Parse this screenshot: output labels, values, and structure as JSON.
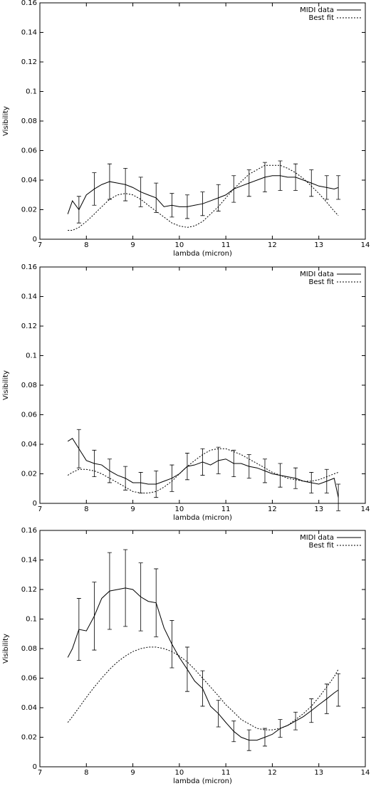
{
  "chart_data": [
    {
      "type": "line",
      "xlabel": "lambda (micron)",
      "ylabel": "Visibility",
      "legend": "top-right",
      "xlim": [
        7,
        14
      ],
      "xticks": [
        7,
        8,
        9,
        10,
        11,
        12,
        13,
        14
      ],
      "ylim": [
        0,
        0.16
      ],
      "yticks": [
        0,
        0.02,
        0.04,
        0.06,
        0.08,
        0.1,
        0.12,
        0.14,
        0.16
      ],
      "x": [
        7.6,
        7.7,
        7.84,
        8.0,
        8.17,
        8.33,
        8.5,
        8.67,
        8.84,
        9.0,
        9.17,
        9.33,
        9.5,
        9.67,
        9.84,
        10.0,
        10.17,
        10.33,
        10.5,
        10.67,
        10.84,
        11.0,
        11.17,
        11.33,
        11.5,
        11.67,
        11.84,
        12.0,
        12.17,
        12.33,
        12.5,
        12.67,
        12.84,
        13.0,
        13.17,
        13.33,
        13.42
      ],
      "series": [
        {
          "name": "MIDI data",
          "color": "#000000",
          "dash": false,
          "values": [
            0.017,
            0.026,
            0.02,
            0.03,
            0.034,
            0.037,
            0.039,
            0.038,
            0.037,
            0.035,
            0.032,
            0.03,
            0.028,
            0.022,
            0.023,
            0.022,
            0.022,
            0.023,
            0.024,
            0.026,
            0.028,
            0.03,
            0.034,
            0.036,
            0.038,
            0.04,
            0.042,
            0.043,
            0.043,
            0.042,
            0.042,
            0.04,
            0.038,
            0.036,
            0.035,
            0.034,
            0.035
          ],
          "errors": [
            null,
            null,
            0.009,
            null,
            0.011,
            null,
            0.012,
            null,
            0.011,
            null,
            0.01,
            null,
            0.01,
            null,
            0.008,
            null,
            0.008,
            null,
            0.008,
            null,
            0.009,
            null,
            0.009,
            null,
            0.009,
            null,
            0.01,
            null,
            0.01,
            null,
            0.009,
            null,
            0.009,
            null,
            0.008,
            null,
            0.008
          ]
        },
        {
          "name": "Best fit",
          "color": "#000000",
          "dash": true,
          "values": [
            0.006,
            0.006,
            0.008,
            0.012,
            0.017,
            0.022,
            0.027,
            0.03,
            0.031,
            0.03,
            0.027,
            0.023,
            0.019,
            0.015,
            0.011,
            0.009,
            0.008,
            0.009,
            0.012,
            0.017,
            0.022,
            0.028,
            0.034,
            0.039,
            0.044,
            0.047,
            0.05,
            0.05,
            0.05,
            0.048,
            0.045,
            0.041,
            0.036,
            0.031,
            0.025,
            0.019,
            0.016
          ]
        }
      ]
    },
    {
      "type": "line",
      "xlabel": "lambda (micron)",
      "ylabel": "Visibility",
      "legend": "top-right",
      "xlim": [
        7,
        14
      ],
      "xticks": [
        7,
        8,
        9,
        10,
        11,
        12,
        13,
        14
      ],
      "ylim": [
        0,
        0.16
      ],
      "yticks": [
        0,
        0.02,
        0.04,
        0.06,
        0.08,
        0.1,
        0.12,
        0.14,
        0.16
      ],
      "x": [
        7.6,
        7.7,
        7.84,
        8.0,
        8.17,
        8.33,
        8.5,
        8.67,
        8.84,
        9.0,
        9.17,
        9.33,
        9.5,
        9.67,
        9.84,
        10.0,
        10.17,
        10.33,
        10.5,
        10.67,
        10.84,
        11.0,
        11.17,
        11.33,
        11.5,
        11.67,
        11.84,
        12.0,
        12.17,
        12.33,
        12.5,
        12.67,
        12.84,
        13.0,
        13.17,
        13.33,
        13.42
      ],
      "series": [
        {
          "name": "MIDI data",
          "color": "#000000",
          "dash": false,
          "values": [
            0.042,
            0.044,
            0.037,
            0.029,
            0.027,
            0.026,
            0.022,
            0.019,
            0.017,
            0.014,
            0.014,
            0.013,
            0.013,
            0.015,
            0.017,
            0.02,
            0.025,
            0.026,
            0.028,
            0.026,
            0.029,
            0.03,
            0.027,
            0.027,
            0.025,
            0.024,
            0.022,
            0.02,
            0.019,
            0.018,
            0.017,
            0.015,
            0.014,
            0.013,
            0.015,
            0.017,
            0.004
          ],
          "errors": [
            null,
            null,
            0.013,
            null,
            0.009,
            null,
            0.008,
            null,
            0.008,
            null,
            0.007,
            null,
            0.009,
            null,
            0.009,
            null,
            0.009,
            null,
            0.009,
            null,
            0.009,
            null,
            0.009,
            null,
            0.008,
            null,
            0.008,
            null,
            0.008,
            null,
            0.007,
            null,
            0.007,
            null,
            0.008,
            null,
            0.009
          ]
        },
        {
          "name": "Best fit",
          "color": "#000000",
          "dash": true,
          "values": [
            0.019,
            0.021,
            0.023,
            0.023,
            0.022,
            0.02,
            0.017,
            0.014,
            0.011,
            0.008,
            0.007,
            0.007,
            0.008,
            0.011,
            0.015,
            0.02,
            0.025,
            0.029,
            0.033,
            0.036,
            0.037,
            0.037,
            0.035,
            0.033,
            0.03,
            0.027,
            0.024,
            0.021,
            0.019,
            0.017,
            0.016,
            0.015,
            0.015,
            0.016,
            0.018,
            0.02,
            0.021
          ]
        }
      ]
    },
    {
      "type": "line",
      "xlabel": "lambda (micron)",
      "ylabel": "Visibility",
      "legend": "top-right",
      "xlim": [
        7,
        14
      ],
      "xticks": [
        7,
        8,
        9,
        10,
        11,
        12,
        13,
        14
      ],
      "ylim": [
        0,
        0.16
      ],
      "yticks": [
        0,
        0.02,
        0.04,
        0.06,
        0.08,
        0.1,
        0.12,
        0.14,
        0.16
      ],
      "x": [
        7.6,
        7.7,
        7.84,
        8.0,
        8.17,
        8.33,
        8.5,
        8.67,
        8.84,
        9.0,
        9.17,
        9.33,
        9.5,
        9.67,
        9.84,
        10.0,
        10.17,
        10.33,
        10.5,
        10.67,
        10.84,
        11.0,
        11.17,
        11.33,
        11.5,
        11.67,
        11.84,
        12.0,
        12.17,
        12.33,
        12.5,
        12.67,
        12.84,
        13.0,
        13.17,
        13.33,
        13.42
      ],
      "series": [
        {
          "name": "MIDI data",
          "color": "#000000",
          "dash": false,
          "values": [
            0.074,
            0.08,
            0.093,
            0.092,
            0.102,
            0.114,
            0.119,
            0.12,
            0.121,
            0.12,
            0.115,
            0.112,
            0.111,
            0.094,
            0.083,
            0.074,
            0.066,
            0.058,
            0.053,
            0.041,
            0.036,
            0.03,
            0.024,
            0.02,
            0.018,
            0.018,
            0.02,
            0.022,
            0.026,
            0.028,
            0.031,
            0.034,
            0.038,
            0.042,
            0.046,
            0.05,
            0.052
          ],
          "errors": [
            null,
            null,
            0.021,
            null,
            0.023,
            null,
            0.026,
            null,
            0.026,
            null,
            0.023,
            null,
            0.023,
            null,
            0.016,
            null,
            0.015,
            null,
            0.012,
            null,
            0.009,
            null,
            0.007,
            null,
            0.007,
            null,
            0.006,
            null,
            0.006,
            null,
            0.006,
            null,
            0.008,
            null,
            0.01,
            null,
            0.011
          ]
        },
        {
          "name": "Best fit",
          "color": "#000000",
          "dash": true,
          "values": [
            0.03,
            0.034,
            0.04,
            0.047,
            0.054,
            0.06,
            0.066,
            0.071,
            0.075,
            0.078,
            0.08,
            0.081,
            0.081,
            0.08,
            0.078,
            0.075,
            0.071,
            0.066,
            0.06,
            0.054,
            0.048,
            0.042,
            0.037,
            0.032,
            0.029,
            0.026,
            0.025,
            0.025,
            0.026,
            0.028,
            0.032,
            0.036,
            0.041,
            0.047,
            0.054,
            0.061,
            0.066
          ]
        }
      ]
    }
  ]
}
